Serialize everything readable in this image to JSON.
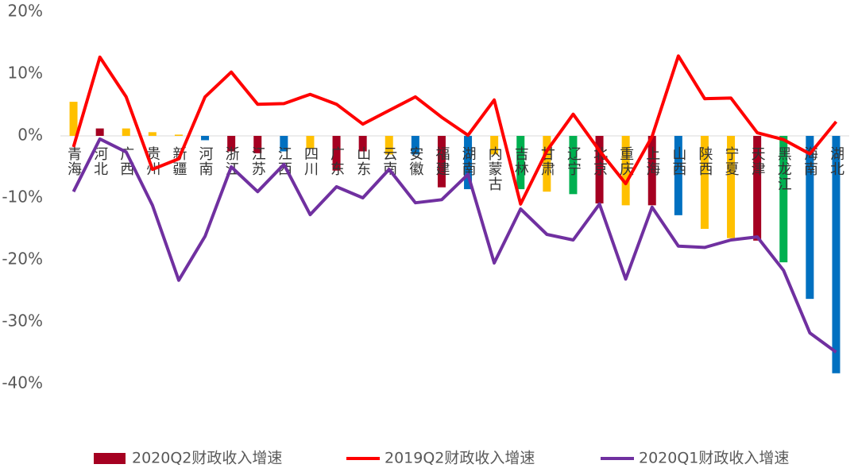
{
  "chart_data": {
    "type": "bar",
    "categories": [
      "青海",
      "河北",
      "广西",
      "贵州",
      "新疆",
      "河南",
      "浙江",
      "江苏",
      "江西",
      "四川",
      "广东",
      "山东",
      "云南",
      "安徽",
      "福建",
      "湖南",
      "内蒙古",
      "吉林",
      "甘肃",
      "辽宁",
      "北京",
      "重庆",
      "上海",
      "山西",
      "陕西",
      "宁夏",
      "天津",
      "黑龙江",
      "海南",
      "湖北"
    ],
    "ylim": [
      -40,
      20
    ],
    "yticks": [
      {
        "value": 20,
        "label": "20%"
      },
      {
        "value": 10,
        "label": "10%"
      },
      {
        "value": 0,
        "label": "0%"
      },
      {
        "value": -10,
        "label": "-10%"
      },
      {
        "value": -20,
        "label": "-20%"
      },
      {
        "value": -30,
        "label": "-30%"
      },
      {
        "value": -40,
        "label": "-40%"
      }
    ],
    "grid": false,
    "legend": "bottom",
    "series": [
      {
        "name": "2020Q2财政收入增速",
        "type": "bar",
        "color": "#a50021",
        "colors": [
          "#ffc000",
          "#a50021",
          "#ffc000",
          "#ffc000",
          "#ffc000",
          "#0070c0",
          "#a50021",
          "#a50021",
          "#0070c0",
          "#ffc000",
          "#a50021",
          "#a50021",
          "#ffc000",
          "#0070c0",
          "#a50021",
          "#0070c0",
          "#ffc000",
          "#00b050",
          "#ffc000",
          "#00b050",
          "#a50021",
          "#ffc000",
          "#a50021",
          "#0070c0",
          "#ffc000",
          "#ffc000",
          "#a50021",
          "#00b050",
          "#0070c0",
          "#0070c0"
        ],
        "values": [
          5.5,
          1.2,
          1.2,
          0.6,
          0.2,
          -0.7,
          -2.5,
          -2.8,
          -2.5,
          -2.0,
          -5.6,
          -2.5,
          -3.0,
          -3.0,
          -8.3,
          -8.6,
          -3.0,
          -8.6,
          -9.0,
          -9.4,
          -10.9,
          -11.2,
          -11.2,
          -12.8,
          -15.0,
          -16.5,
          -16.9,
          -20.4,
          -26.3,
          -38.3
        ]
      },
      {
        "name": "2019Q2财政收入增速",
        "type": "line",
        "color": "#ff0000",
        "values": [
          -1.8,
          12.7,
          6.3,
          -5.4,
          -3.7,
          6.3,
          10.3,
          5.1,
          5.2,
          6.7,
          5.1,
          1.9,
          4.1,
          6.3,
          3.0,
          0.1,
          5.8,
          -11.0,
          -2.4,
          3.5,
          -2.4,
          -7.7,
          -0.1,
          12.9,
          6.0,
          6.1,
          0.5,
          -0.6,
          -2.9,
          2.3
        ]
      },
      {
        "name": "2020Q1财政收入增速",
        "type": "line",
        "color": "#7030a0",
        "values": [
          -9.0,
          -0.5,
          -2.6,
          -11.2,
          -23.3,
          -16.2,
          -5.0,
          -9.0,
          -4.6,
          -12.7,
          -8.2,
          -10.0,
          -5.4,
          -10.8,
          -10.3,
          -6.2,
          -20.5,
          -11.8,
          -15.9,
          -16.8,
          -11.0,
          -23.1,
          -11.5,
          -17.8,
          -18.0,
          -16.8,
          -16.3,
          -21.7,
          -31.8,
          -34.9
        ]
      }
    ]
  }
}
